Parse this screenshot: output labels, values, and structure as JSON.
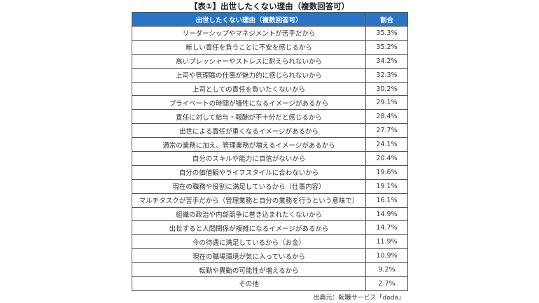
{
  "title": "【表①】出世したくない理由（複数回答可）",
  "table": {
    "headers": [
      "出世したくない理由（複数回答可）",
      "割合"
    ],
    "rows": [
      [
        "リーダーシップやマネジメントが苦手だから",
        "35.3%"
      ],
      [
        "新しい責任を負うことに不安を感じるから",
        "35.2%"
      ],
      [
        "高いプレッシャーやストレスに耐えられないから",
        "34.2%"
      ],
      [
        "上司や管理職の仕事が魅力的に感じられないから",
        "32.3%"
      ],
      [
        "上司としての責任を負いたくないから",
        "30.2%"
      ],
      [
        "プライベートの時間が犠牲になるイメージがあるから",
        "29.1%"
      ],
      [
        "責任に対して給与・報酬が不十分だと感じるから",
        "28.4%"
      ],
      [
        "出世による責任が重くなるイメージがあるから",
        "27.7%"
      ],
      [
        "通常の業務に加え、管理業務が増えるイメージがあるから",
        "24.1%"
      ],
      [
        "自分のスキルや能力に自信がないから",
        "20.4%"
      ],
      [
        "自分の価値観やライフスタイルに合わないから",
        "19.6%"
      ],
      [
        "現在の職務や役割に満足しているから（仕事内容）",
        "19.1%"
      ],
      [
        "マルチタスクが苦手だから（管理業務と自分の業務を行うという意味で）",
        "16.1%"
      ],
      [
        "組織の政治や内部競争に巻き込まれたくないから",
        "14.9%"
      ],
      [
        "出世すると人間関係が複雑になるイメージがあるから",
        "14.7%"
      ],
      [
        "今の待遇に満足しているから（お金）",
        "11.9%"
      ],
      [
        "現在の職場環境が気に入っているから",
        "10.9%"
      ],
      [
        "転勤や異動の可能性が増えるから",
        "9.2%"
      ],
      [
        "その他",
        "2.7%"
      ]
    ]
  },
  "source": "出典元：転職サービス「doda」",
  "colors": {
    "header_bg": "#2a74c4"
  }
}
